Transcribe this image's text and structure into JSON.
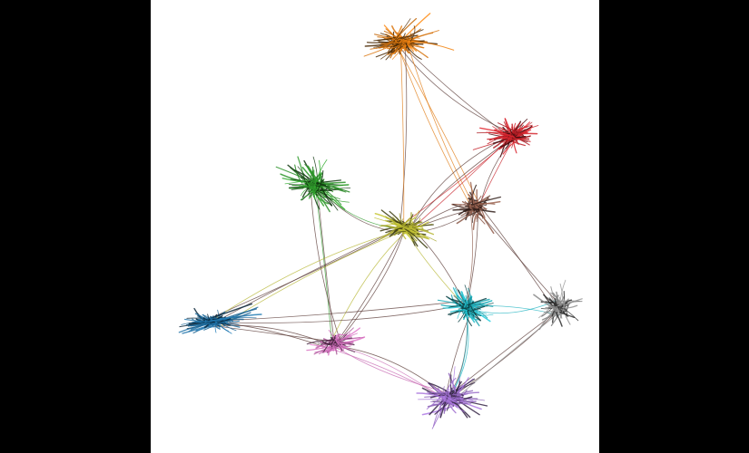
{
  "colors": {
    "background": "#000000",
    "canvas": "#ffffff"
  },
  "graph": {
    "type": "edge-bundled network",
    "cluster_count": 10,
    "clusters": [
      {
        "id": "orange",
        "color": "#e07a10"
      },
      {
        "id": "red",
        "color": "#c7222a"
      },
      {
        "id": "green",
        "color": "#2f9a2c"
      },
      {
        "id": "brown",
        "color": "#8b5a4a"
      },
      {
        "id": "olive",
        "color": "#b5b531"
      },
      {
        "id": "blue",
        "color": "#1f6fa3"
      },
      {
        "id": "pink",
        "color": "#c76ab3"
      },
      {
        "id": "cyan",
        "color": "#1fb3c0"
      },
      {
        "id": "grey",
        "color": "#8a8a8a"
      },
      {
        "id": "purple",
        "color": "#9a6cc9"
      }
    ],
    "links": [
      [
        "orange",
        "red"
      ],
      [
        "orange",
        "brown"
      ],
      [
        "orange",
        "olive"
      ],
      [
        "red",
        "brown"
      ],
      [
        "red",
        "olive"
      ],
      [
        "green",
        "olive"
      ],
      [
        "green",
        "pink"
      ],
      [
        "brown",
        "olive"
      ],
      [
        "brown",
        "cyan"
      ],
      [
        "brown",
        "grey"
      ],
      [
        "olive",
        "cyan"
      ],
      [
        "olive",
        "blue"
      ],
      [
        "olive",
        "pink"
      ],
      [
        "blue",
        "pink"
      ],
      [
        "blue",
        "cyan"
      ],
      [
        "pink",
        "purple"
      ],
      [
        "cyan",
        "purple"
      ],
      [
        "cyan",
        "grey"
      ],
      [
        "grey",
        "purple"
      ]
    ]
  }
}
